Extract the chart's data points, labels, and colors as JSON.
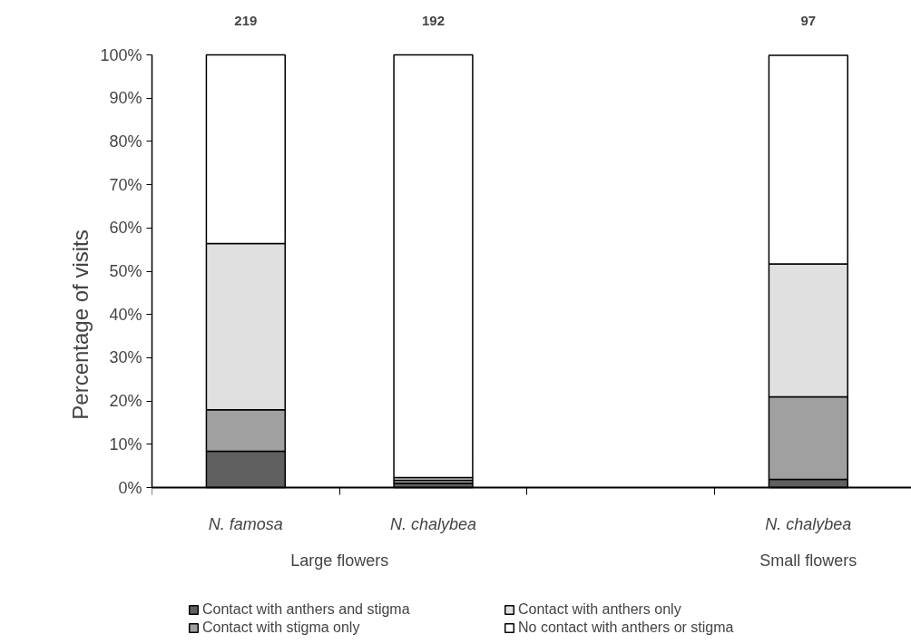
{
  "chart_data": {
    "type": "bar",
    "stacked": true,
    "ylabel": "Percentage of visits",
    "categories": [
      "N. famosa",
      "N. chalybea",
      null,
      "N. chalybea"
    ],
    "series": [
      {
        "name": "Contact with anthers and stigma",
        "color": "#606060",
        "values": [
          8.4,
          1.0,
          null,
          1.9
        ]
      },
      {
        "name": "Contact with stigma only",
        "color": "#a0a0a0",
        "values": [
          9.6,
          0.7,
          null,
          19.1
        ]
      },
      {
        "name": "Contact with anthers only",
        "color": "#e0e0e0",
        "values": [
          38.4,
          0.6,
          null,
          30.7
        ]
      },
      {
        "name": "No contact with anthers or stigma",
        "color": "#ffffff",
        "values": [
          43.6,
          97.7,
          null,
          48.2
        ]
      }
    ],
    "annotations": [
      "219",
      "192",
      "97",
      "Large flowers",
      "Small flowers"
    ],
    "ylim": [
      0,
      100
    ],
    "yticks": [
      {
        "value": 0,
        "label": "0%"
      },
      {
        "value": 10,
        "label": "10%"
      },
      {
        "value": 20,
        "label": "20%"
      },
      {
        "value": 30,
        "label": "30%"
      },
      {
        "value": 40,
        "label": "40%"
      },
      {
        "value": 50,
        "label": "50%"
      },
      {
        "value": 60,
        "label": "60%"
      },
      {
        "value": 70,
        "label": "70%"
      },
      {
        "value": 80,
        "label": "80%"
      },
      {
        "value": 90,
        "label": "90%"
      },
      {
        "value": 100,
        "label": "100%"
      }
    ],
    "grid": false,
    "legend": "bottom"
  }
}
